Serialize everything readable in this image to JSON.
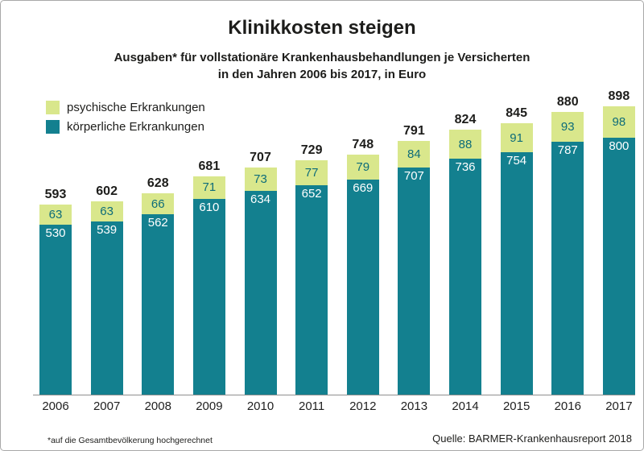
{
  "header": {
    "title": "Klinikkosten steigen",
    "subtitle_line1": "Ausgaben* für vollstationäre Krankenhausbehandlungen je Versicherten",
    "subtitle_line2": "in den Jahren 2006 bis 2017, in Euro"
  },
  "legend": {
    "items": [
      {
        "label": "psychische Erkrankungen",
        "color": "#d9e78c"
      },
      {
        "label": "körperliche Erkrankungen",
        "color": "#13808f"
      }
    ]
  },
  "footer": {
    "footnote": "*auf die Gesamtbevölkerung hochgerechnet",
    "source": "Quelle: BARMER-Krankenhausreport 2018"
  },
  "chart_data": {
    "type": "bar",
    "stacked": true,
    "title": "Klinikkosten steigen",
    "subtitle": "Ausgaben* für vollstationäre Krankenhausbehandlungen je Versicherten in den Jahren 2006 bis 2017, in Euro",
    "categories": [
      "2006",
      "2007",
      "2008",
      "2009",
      "2010",
      "2011",
      "2012",
      "2013",
      "2014",
      "2015",
      "2016",
      "2017"
    ],
    "series": [
      {
        "name": "körperliche Erkrankungen",
        "color": "#13808f",
        "values": [
          530,
          539,
          562,
          610,
          634,
          652,
          669,
          707,
          736,
          754,
          787,
          800
        ]
      },
      {
        "name": "psychische Erkrankungen",
        "color": "#d9e78c",
        "values": [
          63,
          63,
          66,
          71,
          73,
          77,
          79,
          84,
          88,
          91,
          93,
          98
        ]
      }
    ],
    "totals": [
      593,
      602,
      628,
      681,
      707,
      729,
      748,
      791,
      824,
      845,
      880,
      898
    ],
    "xlabel": "",
    "ylabel": "",
    "ylim": [
      0,
      930
    ],
    "grid": false,
    "legend_position": "top-left"
  }
}
